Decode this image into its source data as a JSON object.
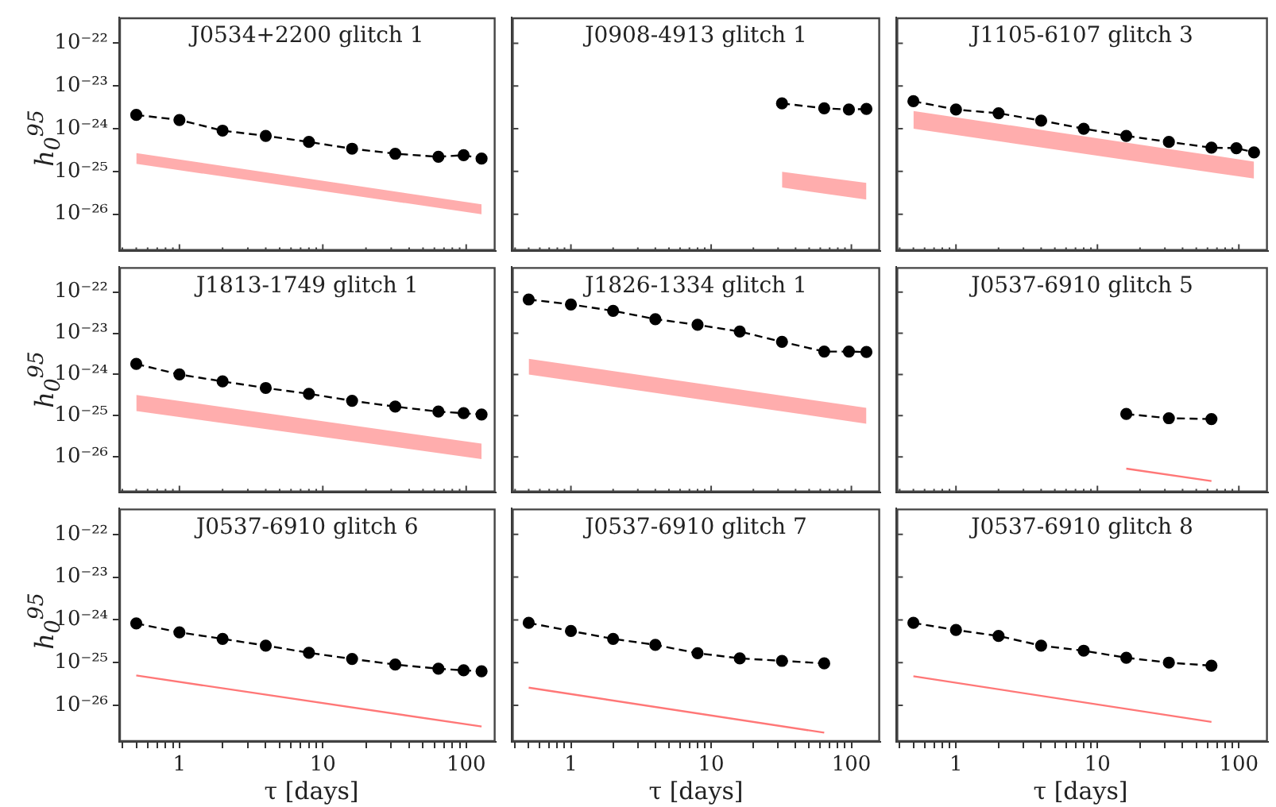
{
  "chart_data": [
    {
      "type": "line",
      "title": "J0534+2200 glitch 1",
      "ylabel": "h$_{0}$$^{95}$",
      "log": "xy",
      "tick_labels": "y",
      "xlim": [
        0.38,
        160
      ],
      "ylim": [
        1.4e-27,
        4e-22
      ],
      "xticks": [
        {
          "value": 0.4,
          "label": null
        },
        {
          "value": 0.5,
          "label": null
        },
        {
          "value": 0.6,
          "label": null
        },
        {
          "value": 0.7,
          "label": null
        },
        {
          "value": 0.8,
          "label": null
        },
        {
          "value": 0.9,
          "label": null
        },
        1,
        {
          "value": 2,
          "label": null
        },
        {
          "value": 3,
          "label": null
        },
        {
          "value": 4,
          "label": null
        },
        {
          "value": 5,
          "label": null
        },
        {
          "value": 6,
          "label": null
        },
        {
          "value": 7,
          "label": null
        },
        {
          "value": 8,
          "label": null
        },
        {
          "value": 9,
          "label": null
        },
        10,
        {
          "value": 20,
          "label": null
        },
        {
          "value": 30,
          "label": null
        },
        {
          "value": 40,
          "label": null
        },
        {
          "value": 50,
          "label": null
        },
        {
          "value": 60,
          "label": null
        },
        {
          "value": 70,
          "label": null
        },
        {
          "value": 80,
          "label": null
        },
        {
          "value": 90,
          "label": null
        },
        100
      ],
      "yticks": [
        {
          "value": 1e-26,
          "label": "10⁻²⁶"
        },
        {
          "value": 1e-25,
          "label": "10⁻²⁵"
        },
        {
          "value": 1e-24,
          "label": "10⁻²⁴"
        },
        {
          "value": 1e-23,
          "label": "10⁻²³"
        },
        {
          "value": 1e-22,
          "label": "10⁻²²"
        }
      ],
      "series": [
        {
          "color": "#000000",
          "marker": "circle",
          "line_style": "dashed",
          "x": [
            0.5,
            1,
            2,
            4,
            8,
            16,
            32,
            64,
            96,
            128
          ],
          "values": [
            2.1e-24,
            1.6e-24,
            9e-25,
            6.8e-25,
            4.9e-25,
            3.4e-25,
            2.6e-25,
            2.2e-25,
            2.4e-25,
            2e-25
          ]
        },
        {
          "type": "area",
          "color": "#ff7777",
          "x": [
            0.5,
            128
          ],
          "values": [
            null,
            null
          ],
          "lower": [
            1.5e-25,
            1e-26
          ],
          "upper": [
            2.7e-25,
            1.7e-26
          ]
        }
      ]
    },
    {
      "type": "line",
      "title": "J0908-4913 glitch 1",
      "log": "xy",
      "tick_labels": false,
      "xlim": [
        0.38,
        160
      ],
      "ylim": [
        1.4e-27,
        4e-22
      ],
      "xticks": [
        {
          "value": 0.4,
          "label": null
        },
        {
          "value": 0.5,
          "label": null
        },
        {
          "value": 0.6,
          "label": null
        },
        {
          "value": 0.7,
          "label": null
        },
        {
          "value": 0.8,
          "label": null
        },
        {
          "value": 0.9,
          "label": null
        },
        1,
        {
          "value": 2,
          "label": null
        },
        {
          "value": 3,
          "label": null
        },
        {
          "value": 4,
          "label": null
        },
        {
          "value": 5,
          "label": null
        },
        {
          "value": 6,
          "label": null
        },
        {
          "value": 7,
          "label": null
        },
        {
          "value": 8,
          "label": null
        },
        {
          "value": 9,
          "label": null
        },
        10,
        {
          "value": 20,
          "label": null
        },
        {
          "value": 30,
          "label": null
        },
        {
          "value": 40,
          "label": null
        },
        {
          "value": 50,
          "label": null
        },
        {
          "value": 60,
          "label": null
        },
        {
          "value": 70,
          "label": null
        },
        {
          "value": 80,
          "label": null
        },
        {
          "value": 90,
          "label": null
        },
        100
      ],
      "yticks": [
        {
          "value": 1e-26,
          "label": null
        },
        {
          "value": 1e-25,
          "label": null
        },
        {
          "value": 1e-24,
          "label": null
        },
        {
          "value": 1e-23,
          "label": null
        },
        {
          "value": 1e-22,
          "label": null
        }
      ],
      "series": [
        {
          "color": "#000000",
          "marker": "circle",
          "line_style": "dashed",
          "x": [
            32,
            64,
            96,
            128
          ],
          "values": [
            3.9e-24,
            3e-24,
            2.8e-24,
            2.9e-24
          ]
        },
        {
          "type": "area",
          "color": "#ff7777",
          "x": [
            32,
            128
          ],
          "values": [
            null,
            null
          ],
          "lower": [
            4.2e-26,
            2.2e-26
          ],
          "upper": [
            9.8e-26,
            5.4e-26
          ]
        }
      ]
    },
    {
      "type": "line",
      "title": "J1105-6107 glitch 3",
      "log": "xy",
      "tick_labels": false,
      "xlim": [
        0.38,
        160
      ],
      "ylim": [
        1.4e-27,
        4e-22
      ],
      "xticks": [
        {
          "value": 0.4,
          "label": null
        },
        {
          "value": 0.5,
          "label": null
        },
        {
          "value": 0.6,
          "label": null
        },
        {
          "value": 0.7,
          "label": null
        },
        {
          "value": 0.8,
          "label": null
        },
        {
          "value": 0.9,
          "label": null
        },
        1,
        {
          "value": 2,
          "label": null
        },
        {
          "value": 3,
          "label": null
        },
        {
          "value": 4,
          "label": null
        },
        {
          "value": 5,
          "label": null
        },
        {
          "value": 6,
          "label": null
        },
        {
          "value": 7,
          "label": null
        },
        {
          "value": 8,
          "label": null
        },
        {
          "value": 9,
          "label": null
        },
        10,
        {
          "value": 20,
          "label": null
        },
        {
          "value": 30,
          "label": null
        },
        {
          "value": 40,
          "label": null
        },
        {
          "value": 50,
          "label": null
        },
        {
          "value": 60,
          "label": null
        },
        {
          "value": 70,
          "label": null
        },
        {
          "value": 80,
          "label": null
        },
        {
          "value": 90,
          "label": null
        },
        100
      ],
      "yticks": [
        {
          "value": 1e-26,
          "label": null
        },
        {
          "value": 1e-25,
          "label": null
        },
        {
          "value": 1e-24,
          "label": null
        },
        {
          "value": 1e-23,
          "label": null
        },
        {
          "value": 1e-22,
          "label": null
        }
      ],
      "series": [
        {
          "color": "#000000",
          "marker": "circle",
          "line_style": "dashed",
          "x": [
            0.5,
            1,
            2,
            4,
            8,
            16,
            32,
            64,
            96,
            128
          ],
          "values": [
            4.4e-24,
            2.8e-24,
            2.3e-24,
            1.55e-24,
            1e-24,
            6.8e-25,
            4.9e-25,
            3.6e-25,
            3.5e-25,
            2.8e-25
          ]
        },
        {
          "type": "area",
          "color": "#ff7777",
          "x": [
            0.5,
            128
          ],
          "values": [
            null,
            null
          ],
          "lower": [
            1e-24,
            6.8e-26
          ],
          "upper": [
            2.6e-24,
            1.7e-25
          ]
        }
      ]
    },
    {
      "type": "line",
      "title": "J1813-1749 glitch 1",
      "ylabel": "h$_{0}$$^{95}$",
      "log": "xy",
      "tick_labels": "y",
      "xlim": [
        0.38,
        160
      ],
      "ylim": [
        1.4e-27,
        4e-22
      ],
      "xticks": [
        {
          "value": 0.4,
          "label": null
        },
        {
          "value": 0.5,
          "label": null
        },
        {
          "value": 0.6,
          "label": null
        },
        {
          "value": 0.7,
          "label": null
        },
        {
          "value": 0.8,
          "label": null
        },
        {
          "value": 0.9,
          "label": null
        },
        1,
        {
          "value": 2,
          "label": null
        },
        {
          "value": 3,
          "label": null
        },
        {
          "value": 4,
          "label": null
        },
        {
          "value": 5,
          "label": null
        },
        {
          "value": 6,
          "label": null
        },
        {
          "value": 7,
          "label": null
        },
        {
          "value": 8,
          "label": null
        },
        {
          "value": 9,
          "label": null
        },
        10,
        {
          "value": 20,
          "label": null
        },
        {
          "value": 30,
          "label": null
        },
        {
          "value": 40,
          "label": null
        },
        {
          "value": 50,
          "label": null
        },
        {
          "value": 60,
          "label": null
        },
        {
          "value": 70,
          "label": null
        },
        {
          "value": 80,
          "label": null
        },
        {
          "value": 90,
          "label": null
        },
        100
      ],
      "yticks": [
        {
          "value": 1e-26,
          "label": "10⁻²⁶"
        },
        {
          "value": 1e-25,
          "label": "10⁻²⁵"
        },
        {
          "value": 1e-24,
          "label": "10⁻²⁴"
        },
        {
          "value": 1e-23,
          "label": "10⁻²³"
        },
        {
          "value": 1e-22,
          "label": "10⁻²²"
        }
      ],
      "series": [
        {
          "color": "#000000",
          "marker": "circle",
          "line_style": "dashed",
          "x": [
            0.5,
            1,
            2,
            4,
            8,
            16,
            32,
            64,
            96,
            128
          ],
          "values": [
            1.8e-24,
            1e-24,
            6.8e-25,
            4.7e-25,
            3.4e-25,
            2.3e-25,
            1.66e-25,
            1.26e-25,
            1.15e-25,
            1.07e-25
          ]
        },
        {
          "type": "area",
          "color": "#ff7777",
          "x": [
            0.5,
            128
          ],
          "values": [
            null,
            null
          ],
          "lower": [
            1.3e-25,
            8.9e-27
          ],
          "upper": [
            3.2e-25,
            2.1e-26
          ]
        }
      ]
    },
    {
      "type": "line",
      "title": "J1826-1334 glitch 1",
      "log": "xy",
      "tick_labels": false,
      "xlim": [
        0.38,
        160
      ],
      "ylim": [
        1.4e-27,
        4e-22
      ],
      "xticks": [
        {
          "value": 0.4,
          "label": null
        },
        {
          "value": 0.5,
          "label": null
        },
        {
          "value": 0.6,
          "label": null
        },
        {
          "value": 0.7,
          "label": null
        },
        {
          "value": 0.8,
          "label": null
        },
        {
          "value": 0.9,
          "label": null
        },
        1,
        {
          "value": 2,
          "label": null
        },
        {
          "value": 3,
          "label": null
        },
        {
          "value": 4,
          "label": null
        },
        {
          "value": 5,
          "label": null
        },
        {
          "value": 6,
          "label": null
        },
        {
          "value": 7,
          "label": null
        },
        {
          "value": 8,
          "label": null
        },
        {
          "value": 9,
          "label": null
        },
        10,
        {
          "value": 20,
          "label": null
        },
        {
          "value": 30,
          "label": null
        },
        {
          "value": 40,
          "label": null
        },
        {
          "value": 50,
          "label": null
        },
        {
          "value": 60,
          "label": null
        },
        {
          "value": 70,
          "label": null
        },
        {
          "value": 80,
          "label": null
        },
        {
          "value": 90,
          "label": null
        },
        100
      ],
      "yticks": [
        {
          "value": 1e-26,
          "label": null
        },
        {
          "value": 1e-25,
          "label": null
        },
        {
          "value": 1e-24,
          "label": null
        },
        {
          "value": 1e-23,
          "label": null
        },
        {
          "value": 1e-22,
          "label": null
        }
      ],
      "series": [
        {
          "color": "#000000",
          "marker": "circle",
          "line_style": "dashed",
          "x": [
            0.5,
            1,
            2,
            4,
            8,
            16,
            32,
            64,
            96,
            128
          ],
          "values": [
            6.6e-23,
            5e-23,
            3.5e-23,
            2.2e-23,
            1.6e-23,
            1.1e-23,
            6.2e-24,
            3.6e-24,
            3.6e-24,
            3.5e-24
          ]
        },
        {
          "type": "area",
          "color": "#ff7777",
          "x": [
            0.5,
            128
          ],
          "values": [
            null,
            null
          ],
          "lower": [
            1e-24,
            6.4e-26
          ],
          "upper": [
            2.4e-24,
            1.55e-25
          ]
        }
      ]
    },
    {
      "type": "line",
      "title": "J0537-6910 glitch 5",
      "log": "xy",
      "tick_labels": false,
      "xlim": [
        0.38,
        160
      ],
      "ylim": [
        1.4e-27,
        4e-22
      ],
      "xticks": [
        {
          "value": 0.4,
          "label": null
        },
        {
          "value": 0.5,
          "label": null
        },
        {
          "value": 0.6,
          "label": null
        },
        {
          "value": 0.7,
          "label": null
        },
        {
          "value": 0.8,
          "label": null
        },
        {
          "value": 0.9,
          "label": null
        },
        1,
        {
          "value": 2,
          "label": null
        },
        {
          "value": 3,
          "label": null
        },
        {
          "value": 4,
          "label": null
        },
        {
          "value": 5,
          "label": null
        },
        {
          "value": 6,
          "label": null
        },
        {
          "value": 7,
          "label": null
        },
        {
          "value": 8,
          "label": null
        },
        {
          "value": 9,
          "label": null
        },
        10,
        {
          "value": 20,
          "label": null
        },
        {
          "value": 30,
          "label": null
        },
        {
          "value": 40,
          "label": null
        },
        {
          "value": 50,
          "label": null
        },
        {
          "value": 60,
          "label": null
        },
        {
          "value": 70,
          "label": null
        },
        {
          "value": 80,
          "label": null
        },
        {
          "value": 90,
          "label": null
        },
        100
      ],
      "yticks": [
        {
          "value": 1e-26,
          "label": null
        },
        {
          "value": 1e-25,
          "label": null
        },
        {
          "value": 1e-24,
          "label": null
        },
        {
          "value": 1e-23,
          "label": null
        },
        {
          "value": 1e-22,
          "label": null
        }
      ],
      "series": [
        {
          "color": "#000000",
          "marker": "circle",
          "line_style": "dashed",
          "x": [
            16,
            32,
            64
          ],
          "values": [
            1.1e-25,
            8.7e-26,
            8.3e-26
          ]
        },
        {
          "type": "line",
          "color": "#ff7777",
          "marker": "none",
          "line_style": "solid",
          "x": [
            16,
            64
          ],
          "values": [
            5.2e-27,
            2.6e-27
          ]
        }
      ]
    },
    {
      "type": "line",
      "title": "J0537-6910 glitch 6",
      "ylabel": "h$_{0}$$^{95}$",
      "xlabel": "τ [days]",
      "log": "xy",
      "xlim": [
        0.38,
        160
      ],
      "ylim": [
        1.4e-27,
        4e-22
      ],
      "xticks": [
        {
          "value": 0.4,
          "label": null
        },
        {
          "value": 0.5,
          "label": null
        },
        {
          "value": 0.6,
          "label": null
        },
        {
          "value": 0.7,
          "label": null
        },
        {
          "value": 0.8,
          "label": null
        },
        {
          "value": 0.9,
          "label": null
        },
        1,
        {
          "value": 2,
          "label": null
        },
        {
          "value": 3,
          "label": null
        },
        {
          "value": 4,
          "label": null
        },
        {
          "value": 5,
          "label": null
        },
        {
          "value": 6,
          "label": null
        },
        {
          "value": 7,
          "label": null
        },
        {
          "value": 8,
          "label": null
        },
        {
          "value": 9,
          "label": null
        },
        10,
        {
          "value": 20,
          "label": null
        },
        {
          "value": 30,
          "label": null
        },
        {
          "value": 40,
          "label": null
        },
        {
          "value": 50,
          "label": null
        },
        {
          "value": 60,
          "label": null
        },
        {
          "value": 70,
          "label": null
        },
        {
          "value": 80,
          "label": null
        },
        {
          "value": 90,
          "label": null
        },
        100
      ],
      "yticks": [
        {
          "value": 1e-26,
          "label": "10⁻²⁶"
        },
        {
          "value": 1e-25,
          "label": "10⁻²⁵"
        },
        {
          "value": 1e-24,
          "label": "10⁻²⁴"
        },
        {
          "value": 1e-23,
          "label": "10⁻²³"
        },
        {
          "value": 1e-22,
          "label": "10⁻²²"
        }
      ],
      "series": [
        {
          "color": "#000000",
          "marker": "circle",
          "line_style": "dashed",
          "x": [
            0.5,
            1,
            2,
            4,
            8,
            16,
            32,
            64,
            96,
            128
          ],
          "values": [
            8.3e-25,
            5.1e-25,
            3.6e-25,
            2.5e-25,
            1.7e-25,
            1.22e-25,
            9e-26,
            7.2e-26,
            6.6e-26,
            6.3e-26
          ]
        },
        {
          "type": "line",
          "color": "#ff7777",
          "marker": "none",
          "line_style": "solid",
          "x": [
            0.5,
            128
          ],
          "values": [
            5e-26,
            3.2e-27
          ]
        }
      ]
    },
    {
      "type": "line",
      "title": "J0537-6910 glitch 7",
      "xlabel": "τ [days]",
      "log": "xy",
      "tick_labels": "x",
      "xlim": [
        0.38,
        160
      ],
      "ylim": [
        1.4e-27,
        4e-22
      ],
      "xticks": [
        {
          "value": 0.4,
          "label": null
        },
        {
          "value": 0.5,
          "label": null
        },
        {
          "value": 0.6,
          "label": null
        },
        {
          "value": 0.7,
          "label": null
        },
        {
          "value": 0.8,
          "label": null
        },
        {
          "value": 0.9,
          "label": null
        },
        1,
        {
          "value": 2,
          "label": null
        },
        {
          "value": 3,
          "label": null
        },
        {
          "value": 4,
          "label": null
        },
        {
          "value": 5,
          "label": null
        },
        {
          "value": 6,
          "label": null
        },
        {
          "value": 7,
          "label": null
        },
        {
          "value": 8,
          "label": null
        },
        {
          "value": 9,
          "label": null
        },
        10,
        {
          "value": 20,
          "label": null
        },
        {
          "value": 30,
          "label": null
        },
        {
          "value": 40,
          "label": null
        },
        {
          "value": 50,
          "label": null
        },
        {
          "value": 60,
          "label": null
        },
        {
          "value": 70,
          "label": null
        },
        {
          "value": 80,
          "label": null
        },
        {
          "value": 90,
          "label": null
        },
        100
      ],
      "yticks": [
        {
          "value": 1e-26,
          "label": null
        },
        {
          "value": 1e-25,
          "label": null
        },
        {
          "value": 1e-24,
          "label": null
        },
        {
          "value": 1e-23,
          "label": null
        },
        {
          "value": 1e-22,
          "label": null
        }
      ],
      "series": [
        {
          "color": "#000000",
          "marker": "circle",
          "line_style": "dashed",
          "x": [
            0.5,
            1,
            2,
            4,
            8,
            16,
            32,
            64
          ],
          "values": [
            8.5e-25,
            5.5e-25,
            3.6e-25,
            2.6e-25,
            1.66e-25,
            1.26e-25,
            1.1e-25,
            9.6e-26
          ]
        },
        {
          "type": "line",
          "color": "#ff7777",
          "marker": "none",
          "line_style": "solid",
          "x": [
            0.5,
            64
          ],
          "values": [
            2.6e-26,
            2.3e-27
          ]
        }
      ]
    },
    {
      "type": "line",
      "title": "J0537-6910 glitch 8",
      "xlabel": "τ [days]",
      "log": "xy",
      "tick_labels": "x",
      "xlim": [
        0.38,
        160
      ],
      "ylim": [
        1.4e-27,
        4e-22
      ],
      "xticks": [
        {
          "value": 0.4,
          "label": null
        },
        {
          "value": 0.5,
          "label": null
        },
        {
          "value": 0.6,
          "label": null
        },
        {
          "value": 0.7,
          "label": null
        },
        {
          "value": 0.8,
          "label": null
        },
        {
          "value": 0.9,
          "label": null
        },
        1,
        {
          "value": 2,
          "label": null
        },
        {
          "value": 3,
          "label": null
        },
        {
          "value": 4,
          "label": null
        },
        {
          "value": 5,
          "label": null
        },
        {
          "value": 6,
          "label": null
        },
        {
          "value": 7,
          "label": null
        },
        {
          "value": 8,
          "label": null
        },
        {
          "value": 9,
          "label": null
        },
        10,
        {
          "value": 20,
          "label": null
        },
        {
          "value": 30,
          "label": null
        },
        {
          "value": 40,
          "label": null
        },
        {
          "value": 50,
          "label": null
        },
        {
          "value": 60,
          "label": null
        },
        {
          "value": 70,
          "label": null
        },
        {
          "value": 80,
          "label": null
        },
        {
          "value": 90,
          "label": null
        },
        100
      ],
      "yticks": [
        {
          "value": 1e-26,
          "label": null
        },
        {
          "value": 1e-25,
          "label": null
        },
        {
          "value": 1e-24,
          "label": null
        },
        {
          "value": 1e-23,
          "label": null
        },
        {
          "value": 1e-22,
          "label": null
        }
      ],
      "series": [
        {
          "color": "#000000",
          "marker": "circle",
          "line_style": "dashed",
          "x": [
            0.5,
            1,
            2,
            4,
            8,
            16,
            32,
            64
          ],
          "values": [
            8.5e-25,
            5.8e-25,
            4.2e-25,
            2.5e-25,
            1.9e-25,
            1.3e-25,
            1e-25,
            8.5e-26
          ]
        },
        {
          "type": "line",
          "color": "#ff7777",
          "marker": "none",
          "line_style": "solid",
          "x": [
            0.5,
            64
          ],
          "values": [
            4.8e-26,
            4.1e-27
          ]
        }
      ]
    }
  ]
}
